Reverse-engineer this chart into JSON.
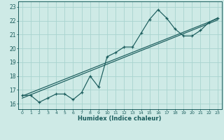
{
  "xlabel": "Humidex (Indice chaleur)",
  "bg_color": "#ceeae6",
  "grid_color": "#a8d4cf",
  "line_color": "#1a5c5c",
  "xlim": [
    -0.5,
    23.5
  ],
  "ylim": [
    15.6,
    23.4
  ],
  "xticks": [
    0,
    1,
    2,
    3,
    4,
    5,
    6,
    7,
    8,
    9,
    10,
    11,
    12,
    13,
    14,
    15,
    16,
    17,
    18,
    19,
    20,
    21,
    22,
    23
  ],
  "yticks": [
    16,
    17,
    18,
    19,
    20,
    21,
    22,
    23
  ],
  "data_x": [
    0,
    1,
    2,
    3,
    4,
    5,
    6,
    7,
    8,
    9,
    10,
    11,
    12,
    13,
    14,
    15,
    16,
    17,
    18,
    19,
    20,
    21,
    22,
    23
  ],
  "data_y": [
    16.6,
    16.6,
    16.1,
    16.4,
    16.7,
    16.7,
    16.3,
    16.8,
    18.0,
    17.2,
    19.4,
    19.7,
    20.1,
    20.1,
    21.1,
    22.1,
    22.8,
    22.2,
    21.4,
    20.9,
    20.9,
    21.3,
    21.9,
    22.2
  ],
  "reg1_y_start": 16.4,
  "reg1_y_end": 22.05,
  "reg2_y_start": 16.55,
  "reg2_y_end": 22.15
}
